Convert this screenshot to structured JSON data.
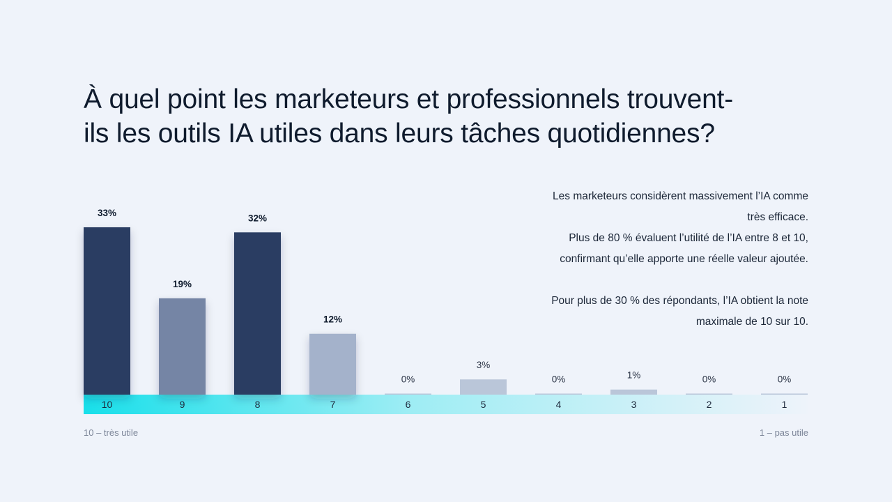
{
  "heading": {
    "line1": "À quel point les marketeurs et professionnels trouvent-",
    "line2": "ils les outils IA utiles dans leurs tâches quotidiennes?"
  },
  "note": {
    "p1_line1": "Les marketeurs considèrent massivement l’IA comme",
    "p1_line2": "très efficace.",
    "p1_line3": "Plus de 80 % évaluent l’utilité de l’IA entre 8 et 10,",
    "p1_line4": "confirmant qu’elle apporte une réelle valeur ajoutée.",
    "p2_line1": "Pour plus de 30 % des répondants, l’IA obtient la note",
    "p2_line2": "maximale de 10 sur 10."
  },
  "scale": {
    "left_caption": "10 – très utile",
    "right_caption": "1 – pas utile"
  },
  "colors": {
    "dark": "#2c3e62",
    "mid": "#7485a5",
    "light": "#a4b2cb",
    "pale": "#bac6d9",
    "gradient_start": "#18dfea",
    "gradient_end": "#eef3fa"
  },
  "chart_data": {
    "type": "bar",
    "categories": [
      "10",
      "9",
      "8",
      "7",
      "6",
      "5",
      "4",
      "3",
      "2",
      "1"
    ],
    "values": [
      33,
      19,
      32,
      12,
      0,
      3,
      0,
      1,
      0,
      0
    ],
    "labels": [
      "33%",
      "19%",
      "32%",
      "12%",
      "0%",
      "3%",
      "0%",
      "1%",
      "0%",
      "0%"
    ],
    "bold_labels": [
      true,
      true,
      true,
      true,
      false,
      false,
      false,
      false,
      false,
      false
    ],
    "bar_colors": [
      "#2c3e62",
      "#7485a5",
      "#2c3e62",
      "#a4b2cb",
      "#bac6d9",
      "#bac6d9",
      "#bac6d9",
      "#bac6d9",
      "#bac6d9",
      "#bac6d9"
    ],
    "ylim": [
      0,
      33
    ],
    "grid": false
  }
}
